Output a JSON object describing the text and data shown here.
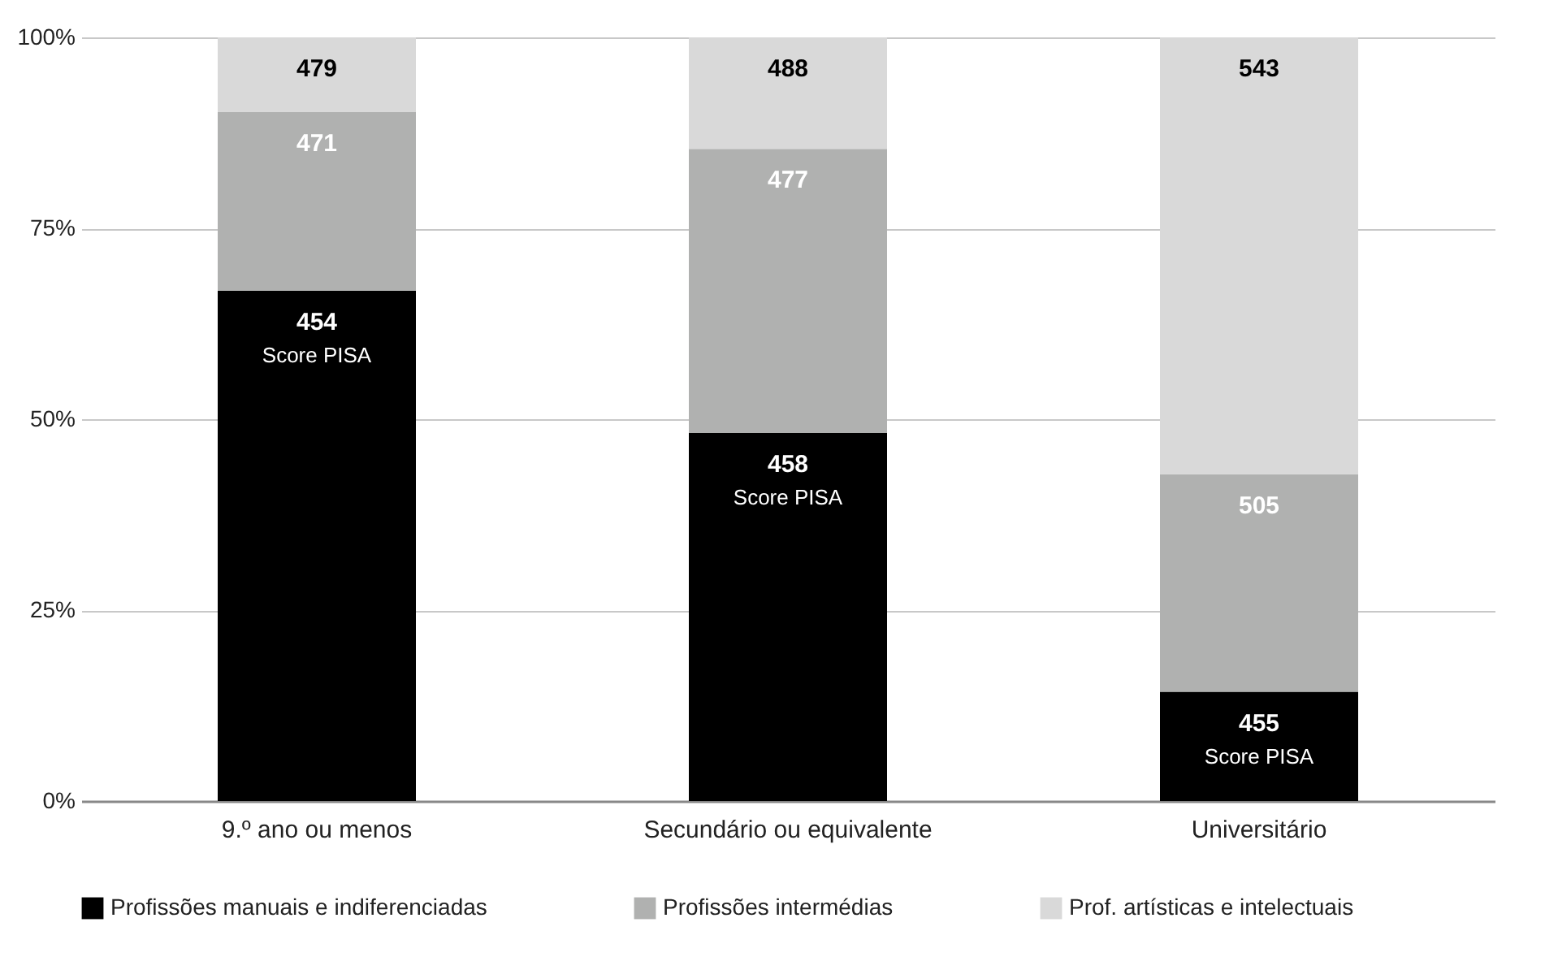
{
  "chart_data": {
    "type": "bar",
    "stacked": true,
    "categories": [
      "9.º ano ou menos",
      "Secundário ou equivalente",
      "Universitário"
    ],
    "series": [
      {
        "name": "Profissões manuais e indiferenciadas",
        "color": "#000000",
        "values": [
          66.8,
          48.2,
          14.3
        ]
      },
      {
        "name": "Profissões intermédias",
        "color": "#b0b1b0",
        "values": [
          23.4,
          37.2,
          28.5
        ]
      },
      {
        "name": "Prof. artísticas e intelectuais",
        "color": "#d9d9d9",
        "values": [
          9.8,
          14.6,
          57.2
        ]
      }
    ],
    "ylim": [
      0,
      100
    ],
    "yticks": [
      {
        "value": 0,
        "label": "0%"
      },
      {
        "value": 25,
        "label": "25%"
      },
      {
        "value": 50,
        "label": "50%"
      },
      {
        "value": 75,
        "label": "75%"
      },
      {
        "value": 100,
        "label": "100%"
      }
    ],
    "annotations": [
      {
        "text": "454",
        "x": "9.º ano ou menos",
        "y": 66.8
      },
      {
        "text": "Score PISA",
        "x": "9.º ano ou menos",
        "y": 66.8
      },
      {
        "text": "471",
        "x": "9.º ano ou menos",
        "y": 90.2
      },
      {
        "text": "479",
        "x": "9.º ano ou menos",
        "y": 100
      },
      {
        "text": "458",
        "x": "Secundário ou equivalente",
        "y": 48.2
      },
      {
        "text": "Score PISA",
        "x": "Secundário ou equivalente",
        "y": 48.2
      },
      {
        "text": "477",
        "x": "Secundário ou equivalente",
        "y": 85.4
      },
      {
        "text": "488",
        "x": "Secundário ou equivalente",
        "y": 100
      },
      {
        "text": "455",
        "x": "Universitário",
        "y": 14.3
      },
      {
        "text": "Score PISA",
        "x": "Universitário",
        "y": 14.3
      },
      {
        "text": "505",
        "x": "Universitário",
        "y": 42.8
      },
      {
        "text": "543",
        "x": "Universitário",
        "y": 100
      }
    ],
    "grid": "y",
    "legend": "bottom"
  }
}
